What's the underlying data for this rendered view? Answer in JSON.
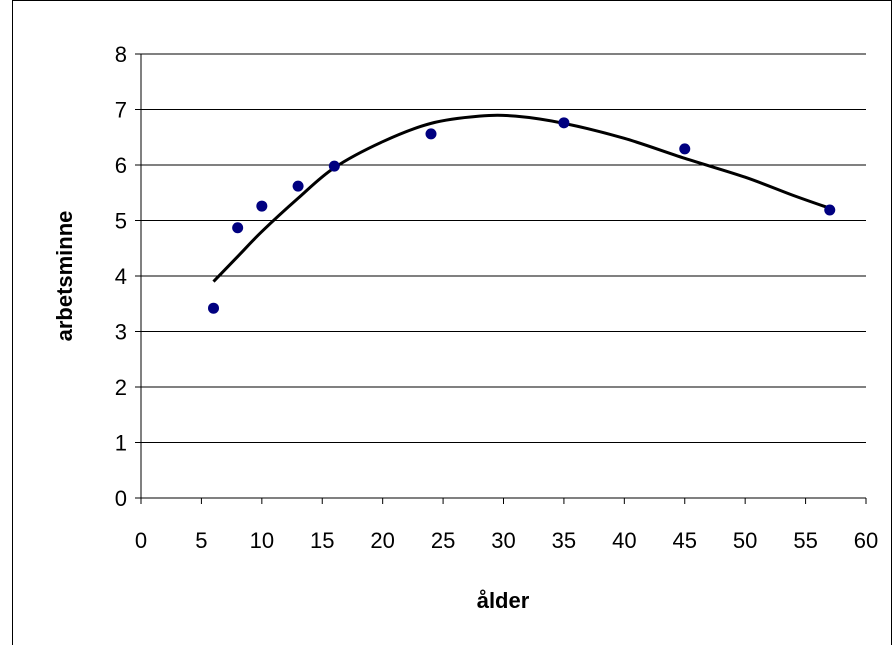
{
  "chart_data": {
    "type": "scatter",
    "xlabel": "ålder",
    "ylabel": "arbetsminne",
    "xlim": [
      0,
      60
    ],
    "ylim": [
      0,
      8
    ],
    "x_ticks": [
      0,
      5,
      10,
      15,
      20,
      25,
      30,
      35,
      40,
      45,
      50,
      55,
      60
    ],
    "y_ticks": [
      0,
      1,
      2,
      3,
      4,
      5,
      6,
      7,
      8
    ],
    "grid": "horizontal",
    "legend": "none",
    "series": [
      {
        "type": "scatter",
        "color": "#000080",
        "points": [
          {
            "x": 6,
            "y": 3.42
          },
          {
            "x": 8,
            "y": 4.87
          },
          {
            "x": 10,
            "y": 5.26
          },
          {
            "x": 13,
            "y": 5.62
          },
          {
            "x": 16,
            "y": 5.98
          },
          {
            "x": 24,
            "y": 6.56
          },
          {
            "x": 35,
            "y": 6.76
          },
          {
            "x": 45,
            "y": 6.29
          },
          {
            "x": 57,
            "y": 5.19
          }
        ]
      },
      {
        "type": "line",
        "color": "#000000",
        "points": [
          {
            "x": 6,
            "y": 3.9
          },
          {
            "x": 8,
            "y": 4.35
          },
          {
            "x": 10,
            "y": 4.8
          },
          {
            "x": 13,
            "y": 5.4
          },
          {
            "x": 16,
            "y": 5.95
          },
          {
            "x": 20,
            "y": 6.42
          },
          {
            "x": 24,
            "y": 6.75
          },
          {
            "x": 28,
            "y": 6.88
          },
          {
            "x": 31,
            "y": 6.88
          },
          {
            "x": 35,
            "y": 6.75
          },
          {
            "x": 40,
            "y": 6.48
          },
          {
            "x": 45,
            "y": 6.12
          },
          {
            "x": 50,
            "y": 5.78
          },
          {
            "x": 54,
            "y": 5.45
          },
          {
            "x": 57,
            "y": 5.22
          }
        ]
      }
    ]
  }
}
